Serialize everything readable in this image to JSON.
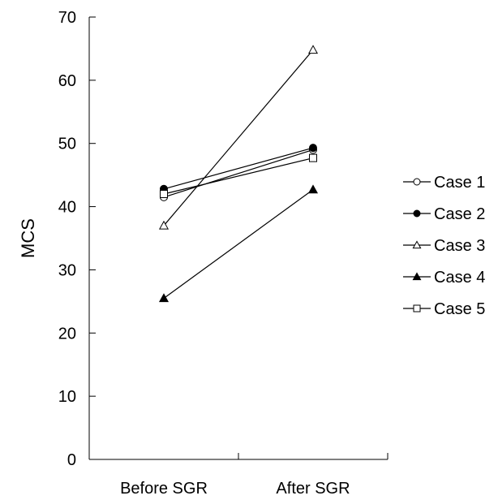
{
  "chart_data": {
    "type": "line",
    "title": "",
    "xlabel": "",
    "ylabel": "MCS",
    "ylim": [
      0,
      70
    ],
    "yticks": [
      0,
      10,
      20,
      30,
      40,
      50,
      60,
      70
    ],
    "categories": [
      "Before SGR",
      "After SGR"
    ],
    "grid": false,
    "legend_position": "right",
    "series": [
      {
        "name": "Case 1",
        "marker": "circle-open",
        "values": [
          41.5,
          49.0
        ]
      },
      {
        "name": "Case 2",
        "marker": "circle-filled",
        "values": [
          42.8,
          49.3
        ]
      },
      {
        "name": "Case 3",
        "marker": "triangle-open",
        "values": [
          37.0,
          64.8
        ]
      },
      {
        "name": "Case 4",
        "marker": "triangle-filled",
        "values": [
          25.5,
          42.7
        ]
      },
      {
        "name": "Case 5",
        "marker": "square-open",
        "values": [
          42.0,
          47.7
        ]
      }
    ]
  }
}
